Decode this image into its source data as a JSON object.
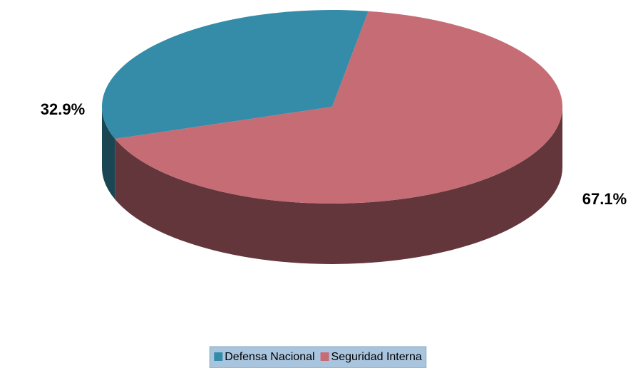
{
  "chart_data": {
    "type": "pie",
    "categories": [
      "Defensa Nacional",
      "Seguridad Interna"
    ],
    "values": [
      32.9,
      67.1
    ],
    "value_labels": [
      "32.9%",
      "67.1%"
    ],
    "colors": [
      "#348ca8",
      "#c66c75"
    ],
    "legend": "bottom"
  }
}
